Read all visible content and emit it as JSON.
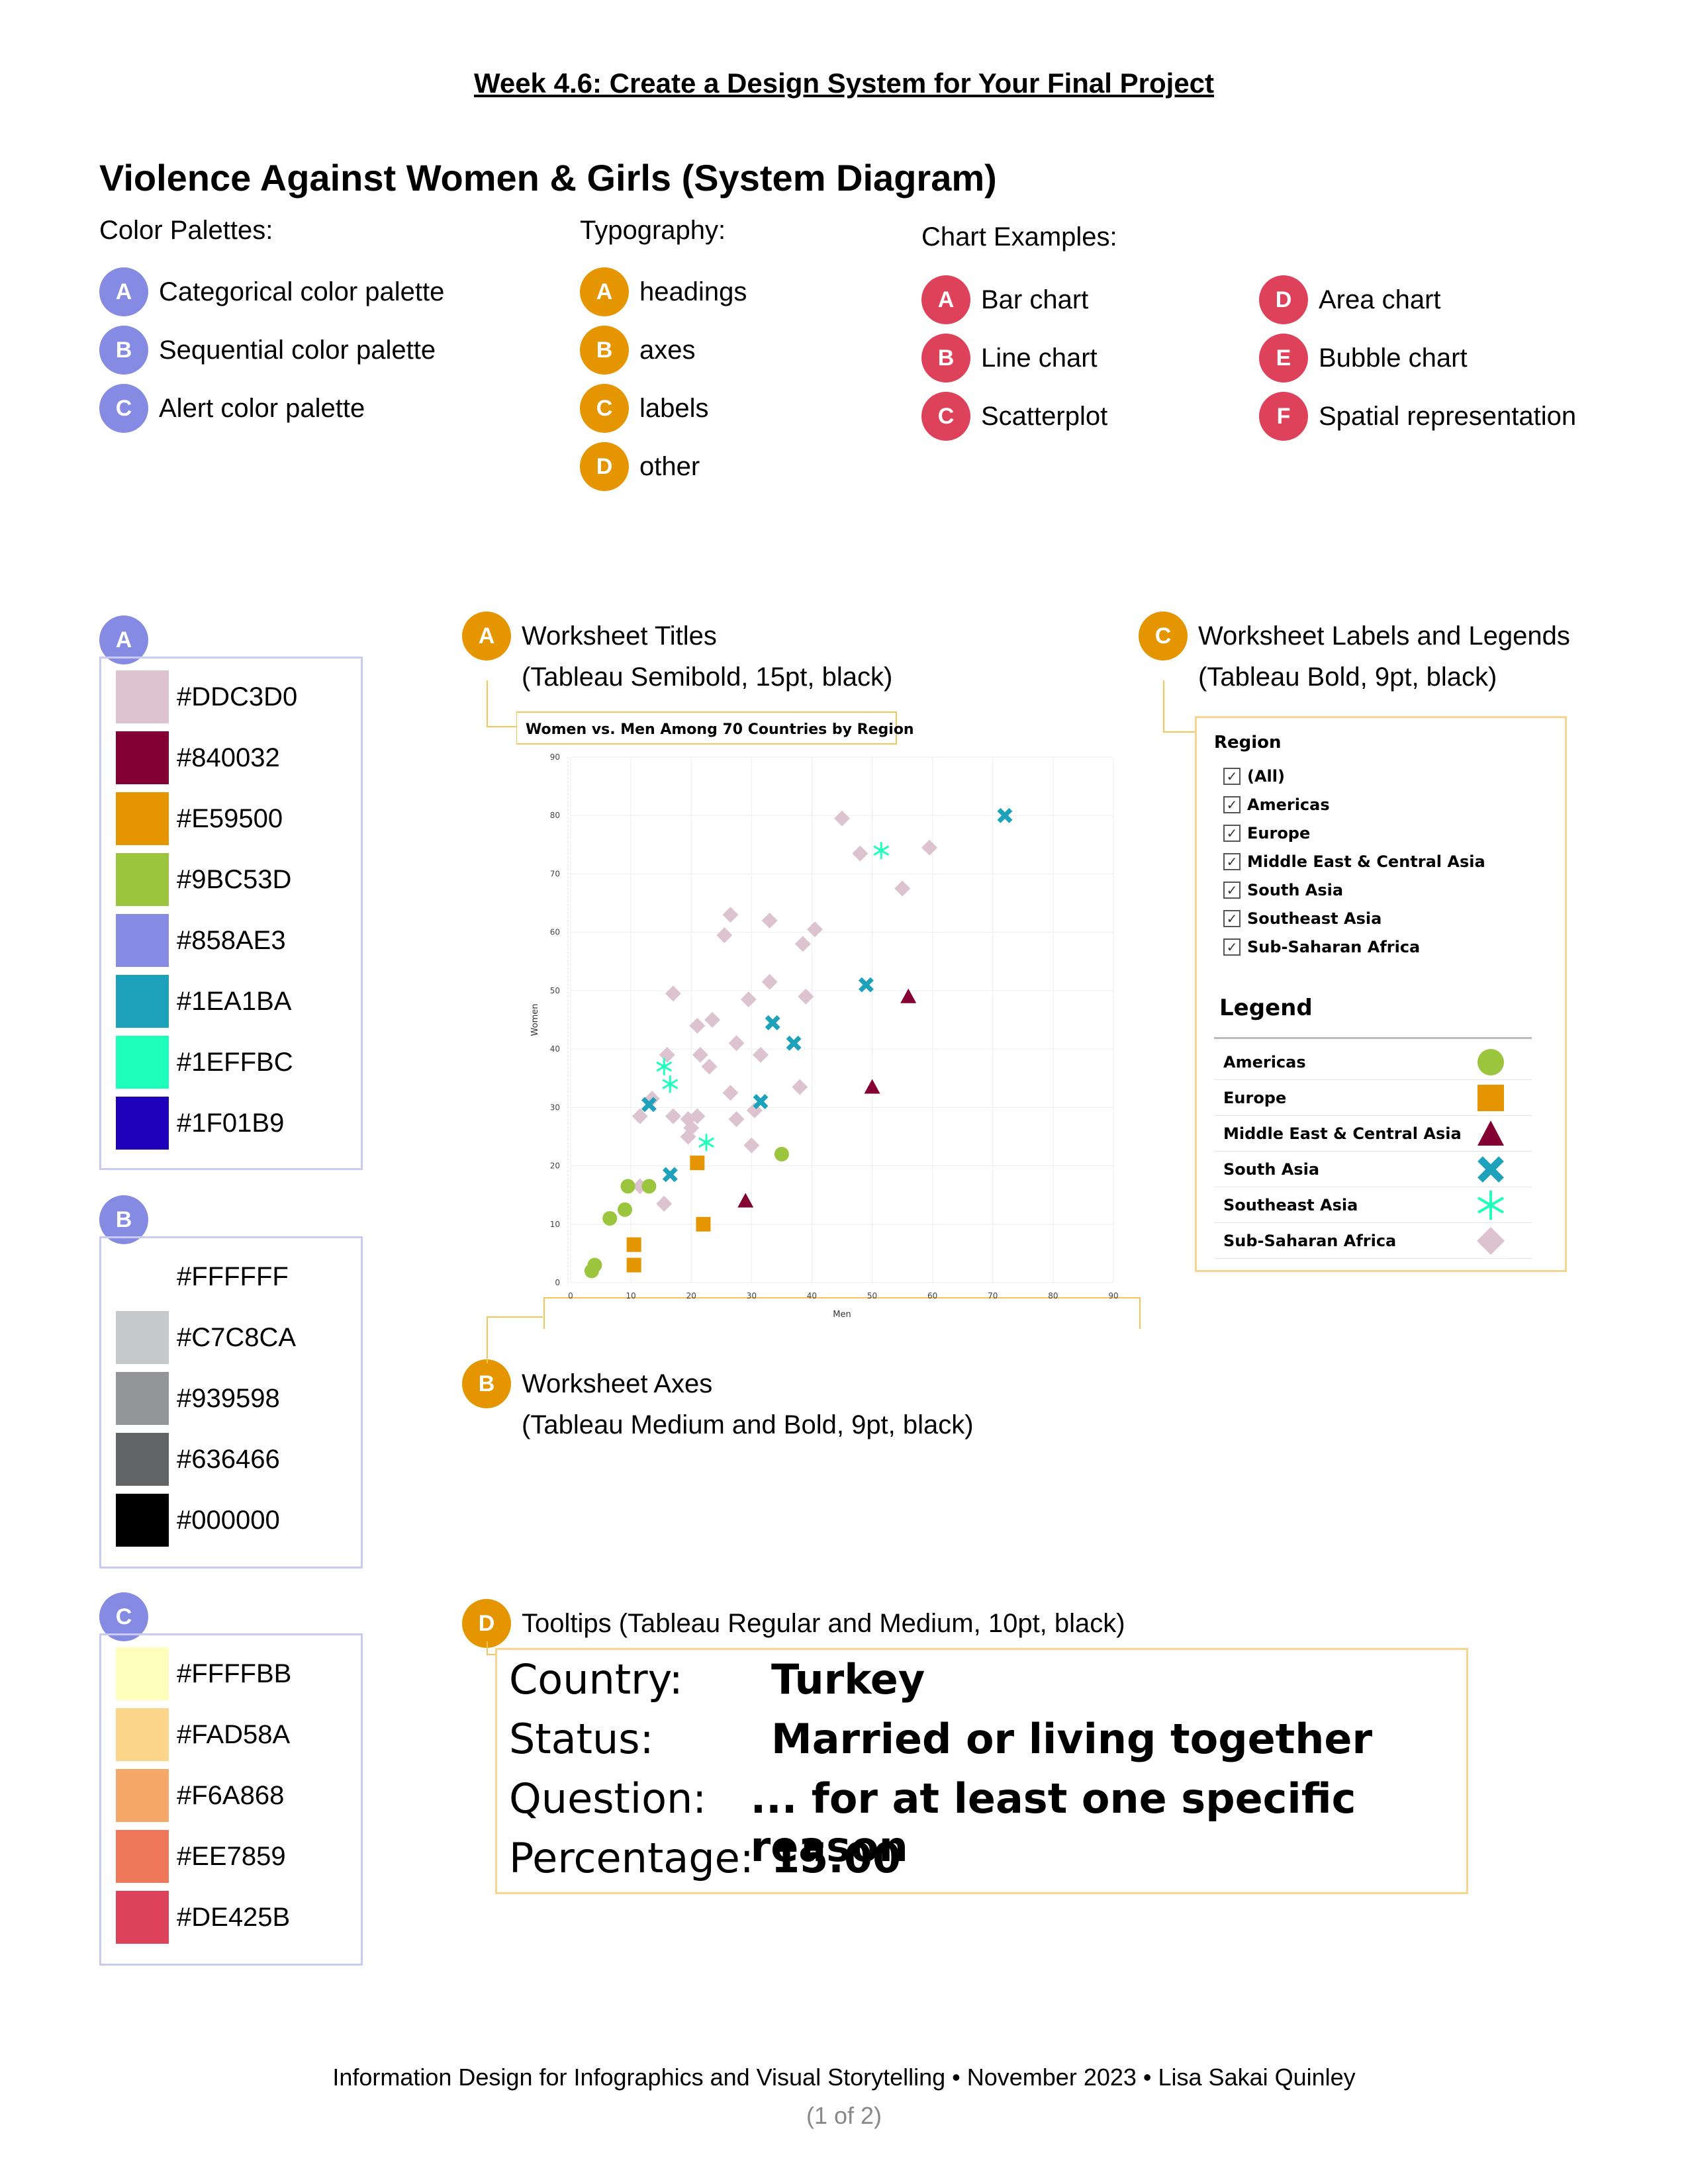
{
  "header": "Week 4.6: Create a Design System for Your Final Project",
  "title": "Violence Against Women & Girls (System Diagram)",
  "color_palettes": {
    "heading": "Color Palettes:",
    "items": [
      {
        "badge": "A",
        "label": "Categorical color palette"
      },
      {
        "badge": "B",
        "label": "Sequential color palette"
      },
      {
        "badge": "C",
        "label": "Alert color palette"
      }
    ]
  },
  "typography": {
    "heading": "Typography:",
    "items": [
      {
        "badge": "A",
        "label": "headings"
      },
      {
        "badge": "B",
        "label": "axes"
      },
      {
        "badge": "C",
        "label": "labels"
      },
      {
        "badge": "D",
        "label": "other"
      }
    ]
  },
  "chart_examples": {
    "heading": "Chart Examples:",
    "items": [
      {
        "badge": "A",
        "label": "Bar chart"
      },
      {
        "badge": "B",
        "label": "Line chart"
      },
      {
        "badge": "C",
        "label": "Scatterplot"
      },
      {
        "badge": "D",
        "label": "Area chart"
      },
      {
        "badge": "E",
        "label": "Bubble chart"
      },
      {
        "badge": "F",
        "label": "Spatial representation"
      }
    ]
  },
  "palettes": {
    "categorical": {
      "badge": "A",
      "swatches": [
        "#DDC3D0",
        "#840032",
        "#E59500",
        "#9BC53D",
        "#858AE3",
        "#1EA1BA",
        "#1EFFBC",
        "#1F01B9"
      ]
    },
    "sequential": {
      "badge": "B",
      "swatches": [
        "#FFFFFF",
        "#C7C8CA",
        "#939598",
        "#636466",
        "#000000"
      ]
    },
    "alert": {
      "badge": "C",
      "swatches": [
        "#FFFFBB",
        "#FAD58A",
        "#F6A868",
        "#EE7859",
        "#DE425B"
      ]
    }
  },
  "callouts": {
    "titles": {
      "badge": "A",
      "line1": "Worksheet Titles",
      "line2": "(Tableau Semibold, 15pt, black)"
    },
    "labels": {
      "badge": "C",
      "line1": "Worksheet Labels and Legends",
      "line2": "(Tableau Bold, 9pt, black)"
    },
    "axes": {
      "badge": "B",
      "line1": "Worksheet Axes",
      "line2": "(Tableau Medium and Bold, 9pt, black)"
    },
    "tooltips": {
      "badge": "D",
      "line1": "Tooltips (Tableau Regular and Medium, 10pt, black)"
    }
  },
  "chart_data": {
    "type": "scatter",
    "title": "Women vs. Men Among 70 Countries by Region",
    "xlabel": "Men",
    "ylabel": "Women",
    "xlim": [
      0,
      90
    ],
    "ylim": [
      0,
      90
    ],
    "ticks": [
      0,
      10,
      20,
      30,
      40,
      50,
      60,
      70,
      80,
      90
    ],
    "grid": true,
    "legend_position": "right",
    "series": [
      {
        "name": "Americas",
        "marker": "circle",
        "color": "#9BC53D",
        "points": [
          [
            3.5,
            2
          ],
          [
            4,
            3
          ],
          [
            6.5,
            11
          ],
          [
            9,
            12.5
          ],
          [
            9.5,
            16.5
          ],
          [
            13,
            16.5
          ],
          [
            35,
            22
          ]
        ]
      },
      {
        "name": "Europe",
        "marker": "square",
        "color": "#E59500",
        "points": [
          [
            10.5,
            3
          ],
          [
            10.5,
            6.5
          ],
          [
            21,
            20.5
          ],
          [
            22,
            10
          ]
        ]
      },
      {
        "name": "Middle East & Central Asia",
        "marker": "triangle",
        "color": "#840032",
        "points": [
          [
            29,
            14
          ],
          [
            50,
            33.5
          ],
          [
            56,
            49
          ]
        ]
      },
      {
        "name": "South Asia",
        "marker": "x",
        "color": "#1EA1BA",
        "points": [
          [
            13,
            30.5
          ],
          [
            16.5,
            18.5
          ],
          [
            31.5,
            31
          ],
          [
            33.5,
            44.5
          ],
          [
            37,
            41
          ],
          [
            49,
            51
          ],
          [
            72,
            80
          ]
        ]
      },
      {
        "name": "Southeast Asia",
        "marker": "asterisk",
        "color": "#1EFFBC",
        "points": [
          [
            15.5,
            37
          ],
          [
            16.5,
            34
          ],
          [
            22.5,
            24
          ],
          [
            51.5,
            74
          ]
        ]
      },
      {
        "name": "Sub-Saharan Africa",
        "marker": "diamond",
        "color": "#DDC3D0",
        "points": [
          [
            11.5,
            16.5
          ],
          [
            11.5,
            28.5
          ],
          [
            13.5,
            31.5
          ],
          [
            15.5,
            13.5
          ],
          [
            16,
            39
          ],
          [
            17,
            49.5
          ],
          [
            17,
            28.5
          ],
          [
            19.5,
            25
          ],
          [
            19.5,
            28
          ],
          [
            20,
            26.5
          ],
          [
            21,
            44
          ],
          [
            21,
            28.5
          ],
          [
            21.5,
            39
          ],
          [
            23,
            37
          ],
          [
            23.5,
            45
          ],
          [
            25.5,
            59.5
          ],
          [
            26.5,
            32.5
          ],
          [
            26.5,
            63
          ],
          [
            27.5,
            41
          ],
          [
            27.5,
            28
          ],
          [
            29.5,
            48.5
          ],
          [
            30,
            23.5
          ],
          [
            30.5,
            29.5
          ],
          [
            31.5,
            39
          ],
          [
            33,
            51.5
          ],
          [
            33,
            62
          ],
          [
            38,
            33.5
          ],
          [
            38.5,
            58
          ],
          [
            39,
            49
          ],
          [
            40.5,
            60.5
          ],
          [
            45,
            79.5
          ],
          [
            48,
            73.5
          ],
          [
            55,
            67.5
          ],
          [
            59.5,
            74.5
          ]
        ]
      }
    ]
  },
  "legend_panel": {
    "region_title": "Region",
    "region_filters": [
      "(All)",
      "Americas",
      "Europe",
      "Middle East & Central Asia",
      "South Asia",
      "Southeast Asia",
      "Sub-Saharan Africa"
    ],
    "legend_title": "Legend",
    "legend_items": [
      "Americas",
      "Europe",
      "Middle East & Central Asia",
      "South Asia",
      "Southeast Asia",
      "Sub-Saharan Africa"
    ]
  },
  "tooltip": {
    "rows": [
      {
        "label": "Country:",
        "value": "Turkey"
      },
      {
        "label": "Status:",
        "value": "Married or living together"
      },
      {
        "label": "Question:",
        "value": "... for at least one specific reason"
      },
      {
        "label": "Percentage:",
        "value": "15.00"
      }
    ]
  },
  "footer": {
    "line1": "Information Design for Infographics and Visual Storytelling • November 2023 • Lisa Sakai Quinley",
    "line2": "(1 of 2)"
  }
}
